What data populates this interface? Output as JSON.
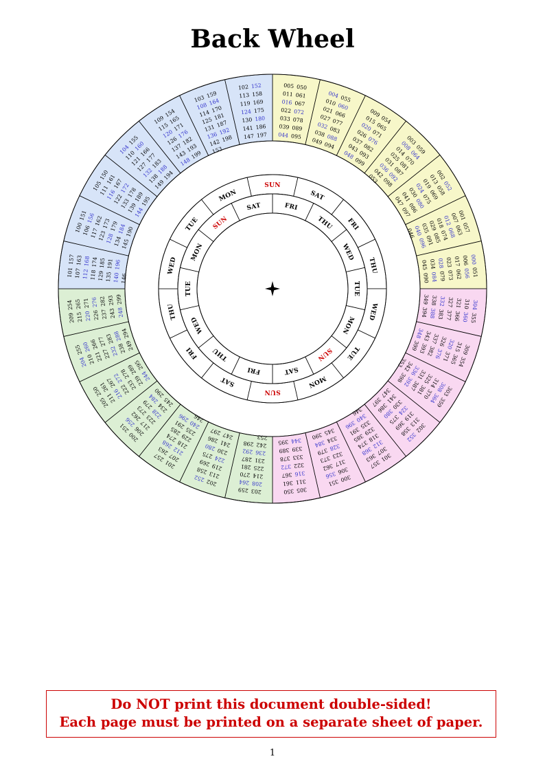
{
  "page": {
    "title": "Back Wheel",
    "page_number": "1",
    "notice_line1": "Do NOT print this document double-sided!",
    "notice_line2": "Each page must be printed on a separate sheet of paper."
  },
  "colors": {
    "yellow": "#f7f7c9",
    "pink": "#f9d8f1",
    "green": "#dcefd4",
    "blue": "#d7e4f8",
    "leap_year_text": "#3333cc",
    "regular_year_text": "#000000",
    "sunday_text": "#cc0000",
    "weekday_text": "#000000",
    "line": "#000000",
    "notice": "#cc0000"
  },
  "wheel": {
    "sectors": [
      {
        "quadrant": "yellow",
        "years": [
          "005",
          "011",
          "016",
          "022",
          "033",
          "039",
          "044",
          "050",
          "061",
          "067",
          "072",
          "078",
          "089",
          "095"
        ]
      },
      {
        "quadrant": "yellow",
        "years": [
          "004",
          "010",
          "021",
          "027",
          "032",
          "038",
          "049",
          "055",
          "060",
          "066",
          "077",
          "083",
          "088",
          "094"
        ]
      },
      {
        "quadrant": "yellow",
        "years": [
          "009",
          "015",
          "020",
          "026",
          "037",
          "043",
          "048",
          "054",
          "065",
          "071",
          "076",
          "082",
          "093",
          "099"
        ]
      },
      {
        "quadrant": "yellow",
        "years": [
          "003",
          "008",
          "014",
          "025",
          "031",
          "036",
          "042",
          "053",
          "059",
          "064",
          "070",
          "081",
          "087",
          "092",
          "098"
        ]
      },
      {
        "quadrant": "yellow",
        "years": [
          "002",
          "013",
          "019",
          "024",
          "030",
          "041",
          "047",
          "052",
          "058",
          "069",
          "075",
          "080",
          "086",
          "097"
        ]
      },
      {
        "quadrant": "yellow",
        "years": [
          "001",
          "007",
          "012",
          "018",
          "029",
          "035",
          "040",
          "046",
          "057",
          "063",
          "068",
          "074",
          "085",
          "091",
          "096"
        ]
      },
      {
        "quadrant": "yellow",
        "years": [
          "000",
          "006",
          "017",
          "023",
          "028",
          "034",
          "045",
          "051",
          "056",
          "062",
          "073",
          "079",
          "084",
          "090"
        ]
      },
      {
        "quadrant": "pink",
        "years": [
          "304",
          "310",
          "321",
          "327",
          "332",
          "338",
          "349",
          "355",
          "360",
          "366",
          "377",
          "383",
          "388",
          "394"
        ]
      },
      {
        "quadrant": "pink",
        "years": [
          "309",
          "315",
          "320",
          "326",
          "337",
          "343",
          "348",
          "354",
          "365",
          "371",
          "376",
          "382",
          "393",
          "399"
        ]
      },
      {
        "quadrant": "pink",
        "years": [
          "303",
          "308",
          "314",
          "325",
          "331",
          "336",
          "342",
          "353",
          "359",
          "364",
          "370",
          "381",
          "387",
          "392",
          "398"
        ]
      },
      {
        "quadrant": "pink",
        "years": [
          "302",
          "313",
          "319",
          "324",
          "330",
          "341",
          "347",
          "352",
          "358",
          "369",
          "375",
          "380",
          "386",
          "397"
        ]
      },
      {
        "quadrant": "pink",
        "years": [
          "301",
          "307",
          "312",
          "318",
          "329",
          "335",
          "340",
          "346",
          "357",
          "363",
          "368",
          "374",
          "385",
          "391",
          "396"
        ]
      },
      {
        "quadrant": "pink",
        "years": [
          "300",
          "306",
          "317",
          "323",
          "328",
          "334",
          "345",
          "351",
          "356",
          "362",
          "373",
          "379",
          "384",
          "390"
        ]
      },
      {
        "quadrant": "pink",
        "years": [
          "305",
          "311",
          "316",
          "322",
          "333",
          "339",
          "344",
          "350",
          "361",
          "367",
          "372",
          "378",
          "389",
          "395"
        ]
      },
      {
        "quadrant": "green",
        "years": [
          "203",
          "208",
          "214",
          "225",
          "231",
          "236",
          "242",
          "253",
          "259",
          "264",
          "270",
          "281",
          "287",
          "292",
          "298"
        ]
      },
      {
        "quadrant": "green",
        "years": [
          "202",
          "213",
          "219",
          "224",
          "230",
          "241",
          "247",
          "252",
          "258",
          "269",
          "275",
          "280",
          "286",
          "297"
        ]
      },
      {
        "quadrant": "green",
        "years": [
          "201",
          "207",
          "212",
          "218",
          "229",
          "235",
          "240",
          "246",
          "257",
          "263",
          "268",
          "274",
          "285",
          "291",
          "296"
        ]
      },
      {
        "quadrant": "green",
        "years": [
          "200",
          "206",
          "217",
          "223",
          "228",
          "234",
          "245",
          "251",
          "256",
          "262",
          "273",
          "279",
          "284",
          "290"
        ]
      },
      {
        "quadrant": "green",
        "years": [
          "205",
          "211",
          "216",
          "222",
          "233",
          "239",
          "244",
          "250",
          "261",
          "267",
          "272",
          "278",
          "289",
          "295"
        ]
      },
      {
        "quadrant": "green",
        "years": [
          "204",
          "210",
          "221",
          "227",
          "232",
          "238",
          "249",
          "255",
          "260",
          "266",
          "277",
          "283",
          "288",
          "294"
        ]
      },
      {
        "quadrant": "green",
        "years": [
          "209",
          "215",
          "220",
          "226",
          "237",
          "243",
          "248",
          "254",
          "265",
          "271",
          "276",
          "282",
          "293",
          "299"
        ]
      },
      {
        "quadrant": "blue",
        "years": [
          "101",
          "107",
          "112",
          "118",
          "129",
          "135",
          "140",
          "146",
          "157",
          "163",
          "168",
          "174",
          "185",
          "191",
          "196"
        ]
      },
      {
        "quadrant": "blue",
        "years": [
          "100",
          "106",
          "117",
          "123",
          "128",
          "134",
          "145",
          "151",
          "156",
          "162",
          "173",
          "179",
          "184",
          "190"
        ]
      },
      {
        "quadrant": "blue",
        "years": [
          "105",
          "111",
          "116",
          "122",
          "133",
          "139",
          "144",
          "150",
          "161",
          "167",
          "172",
          "178",
          "189",
          "195"
        ]
      },
      {
        "quadrant": "blue",
        "years": [
          "104",
          "110",
          "121",
          "127",
          "132",
          "138",
          "149",
          "155",
          "160",
          "166",
          "177",
          "183",
          "188",
          "194"
        ]
      },
      {
        "quadrant": "blue",
        "years": [
          "109",
          "115",
          "120",
          "126",
          "137",
          "143",
          "148",
          "154",
          "165",
          "171",
          "176",
          "182",
          "193",
          "199"
        ]
      },
      {
        "quadrant": "blue",
        "years": [
          "103",
          "108",
          "114",
          "125",
          "131",
          "136",
          "142",
          "153",
          "159",
          "164",
          "170",
          "181",
          "187",
          "192",
          "198"
        ]
      },
      {
        "quadrant": "blue",
        "years": [
          "102",
          "113",
          "119",
          "124",
          "130",
          "141",
          "147",
          "152",
          "158",
          "169",
          "175",
          "180",
          "186",
          "197"
        ]
      }
    ],
    "middle_day_ring": [
      "SUN",
      "SAT",
      "FRI",
      "THU",
      "WED",
      "TUE",
      "MON",
      "SUN",
      "SAT",
      "FRI",
      "THU",
      "WED",
      "TUE",
      "MON"
    ],
    "inner_day_ring": [
      "FRI",
      "THU",
      "WED",
      "TUE",
      "MON",
      "SUN",
      "SAT",
      "FRI",
      "THU",
      "WED",
      "TUE",
      "MON",
      "SUN",
      "SAT"
    ]
  }
}
